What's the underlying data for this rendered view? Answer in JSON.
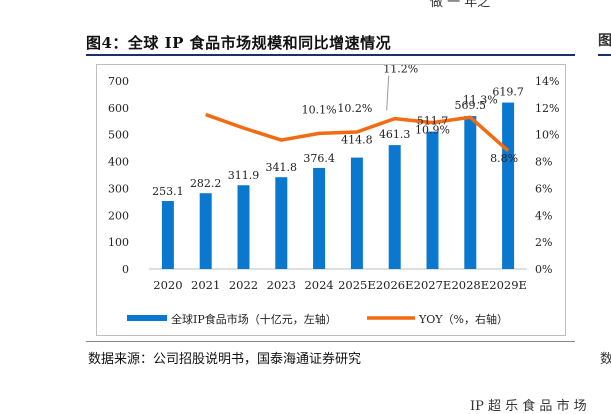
{
  "page": {
    "figure_title": "图4：全球 IP 食品市场规模和同比增速情况",
    "source_note": "数据来源：公司招股说明书，国泰海通证券研究",
    "top_cut_text": "做 一 年之",
    "bottom_cut_text": "IP 超 乐 食 品 市 场",
    "right_cut_title": "图",
    "right_cut_note": "数"
  },
  "colors": {
    "bar": "#0b78d0",
    "line": "#f26b10",
    "title_rule": "#1a2f6b"
  },
  "chart_data": {
    "type": "bar",
    "categories": [
      "2020",
      "2021",
      "2022",
      "2023",
      "2024",
      "2025E",
      "2026E",
      "2027E",
      "2028E",
      "2029E"
    ],
    "series": [
      {
        "name": "全球IP食品市场（十亿元，左轴）",
        "type": "bar",
        "axis": "left",
        "values": [
          253.1,
          282.2,
          311.9,
          341.8,
          376.4,
          414.8,
          461.3,
          511.7,
          569.5,
          619.7
        ],
        "labels": [
          "253.1",
          "282.2",
          "311.9",
          "341.8",
          "376.4",
          "414.8",
          "461.3",
          "511.7",
          "569.5",
          "619.7"
        ]
      },
      {
        "name": "YOY（%，右轴）",
        "type": "line",
        "axis": "right",
        "values": [
          null,
          11.5,
          10.5,
          9.6,
          10.1,
          10.2,
          11.2,
          10.9,
          11.3,
          8.8
        ],
        "labels": [
          "",
          "",
          "",
          "",
          "10.1%",
          "10.2%",
          "11.2%",
          "10.9%",
          "11.3%",
          "8.8%"
        ]
      }
    ],
    "y_left": {
      "min": 0,
      "max": 700,
      "ticks": [
        "0",
        "100",
        "200",
        "300",
        "400",
        "500",
        "600",
        "700"
      ]
    },
    "y_right": {
      "min": 0,
      "max": 14,
      "ticks": [
        "0%",
        "2%",
        "4%",
        "6%",
        "8%",
        "10%",
        "12%",
        "14%"
      ]
    },
    "legend_position": "bottom",
    "grid": false
  }
}
